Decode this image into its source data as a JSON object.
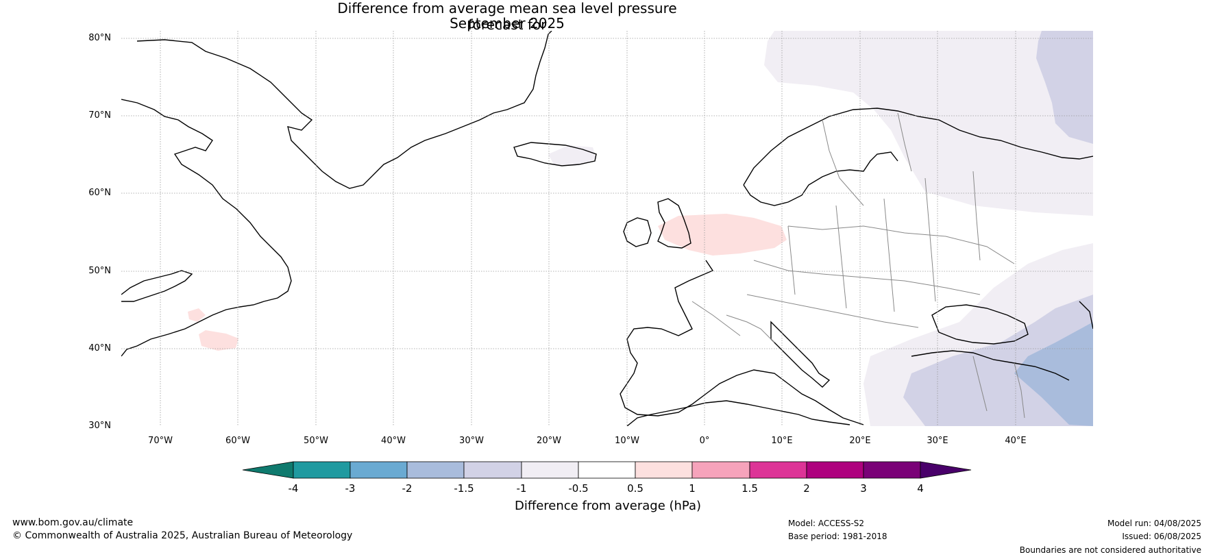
{
  "title_line1": "Difference from average mean sea level pressure forecast for",
  "title_line2": "September 2025",
  "lat_labels": [
    "80°N",
    "70°N",
    "60°N",
    "50°N",
    "40°N",
    "30°N"
  ],
  "lon_labels": [
    "70°W",
    "60°W",
    "50°W",
    "40°W",
    "30°W",
    "20°W",
    "10°W",
    "0°",
    "10°E",
    "20°E",
    "30°E",
    "40°E"
  ],
  "colorbar": {
    "title": "Difference from average (hPa)",
    "ticks": [
      "-4",
      "-3",
      "-2",
      "-1.5",
      "-1",
      "-0.5",
      "0.5",
      "1",
      "1.5",
      "2",
      "3",
      "4"
    ],
    "colors": [
      "#0f7a6e",
      "#1f9aa0",
      "#6aaad2",
      "#a9bcdc",
      "#d2d2e6",
      "#f1eef4",
      "#ffffff",
      "#fde0df",
      "#f6a3bb",
      "#dd3497",
      "#ae017e",
      "#7a0177",
      "#49006a"
    ]
  },
  "footer": {
    "website": "www.bom.gov.au/climate",
    "copyright": "© Commonwealth of Australia 2025, Australian Bureau of Meteorology",
    "model": "Model: ACCESS-S2",
    "base_period": "Base period: 1981-2018",
    "model_run": "Model run: 04/08/2025",
    "issued": "Issued: 06/08/2025",
    "boundaries": "Boundaries are not considered authoritative"
  }
}
